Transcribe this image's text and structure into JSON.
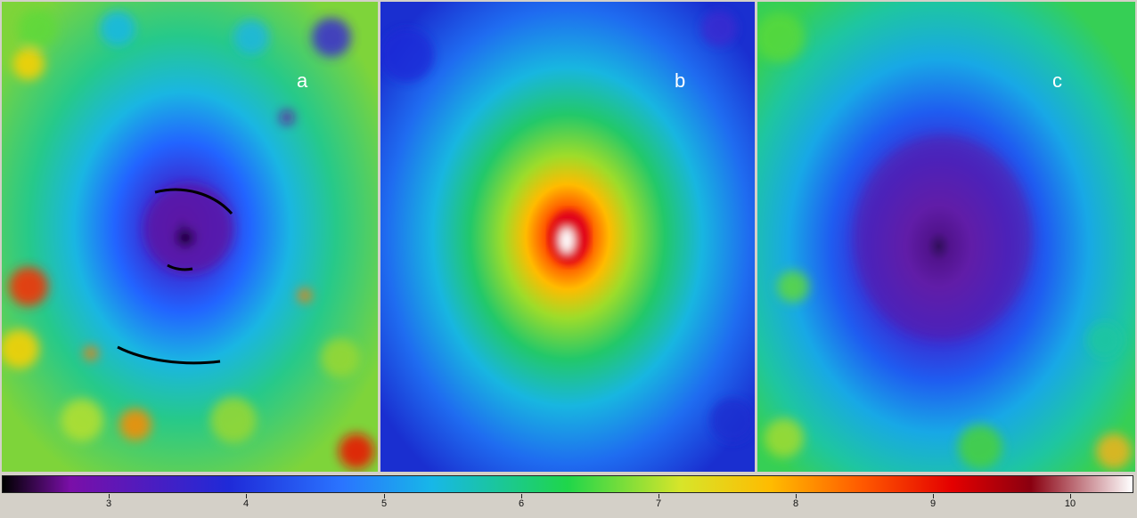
{
  "panels": [
    {
      "id": "a",
      "label": "a"
    },
    {
      "id": "b",
      "label": "b"
    },
    {
      "id": "c",
      "label": "c"
    }
  ],
  "colorbar": {
    "ticks": [
      "3",
      "4",
      "5",
      "6",
      "7",
      "8",
      "9",
      "10"
    ],
    "colors": [
      "#000000",
      "#7a0fa8",
      "#1f2ad8",
      "#17b7e8",
      "#1fd64a",
      "#d7e52a",
      "#ff7a00",
      "#e40000",
      "#ffffff"
    ]
  },
  "annotations": {
    "panel_a_arcs": "black arcs around central source"
  }
}
